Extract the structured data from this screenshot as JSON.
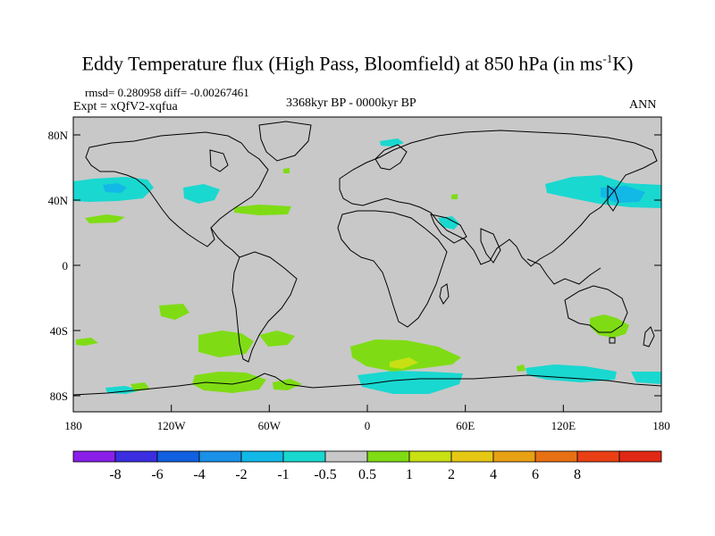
{
  "title_main": "Eddy Temperature flux (High Pass, Bloomfield) at 850 hPa (in ms",
  "title_sup": "-1",
  "title_end": "K)",
  "stats": {
    "rmsd_line": "rmsd= 0.280958 diff= -0.00267461",
    "expt_line": "Expt = xQfV2-xqfua",
    "period": "3368kyr BP - 0000kyr BP",
    "season": "ANN"
  },
  "axes": {
    "y_ticks": [
      "80N",
      "40N",
      "0",
      "40S",
      "80S"
    ],
    "x_ticks": [
      "180",
      "120W",
      "60W",
      "0",
      "60E",
      "120E",
      "180"
    ]
  },
  "colorbar": {
    "colors": [
      "#8a1fe8",
      "#3b2ee0",
      "#1060e0",
      "#1a90e6",
      "#12b8e6",
      "#19d8d0",
      "#c8c8c8",
      "#7fdc14",
      "#c8e014",
      "#e6c814",
      "#e8a014",
      "#e87014",
      "#e84014",
      "#e02814"
    ],
    "labels": [
      "-8",
      "-6",
      "-4",
      "-2",
      "-1",
      "-0.5",
      "0.5",
      "1",
      "2",
      "4",
      "6",
      "8"
    ]
  },
  "colors": {
    "land_ocean_base": "#c8c8c8",
    "negative_anomaly": "#19d8d0",
    "positive_anomaly": "#7fdc14",
    "strong_positive": "#c8e014"
  }
}
